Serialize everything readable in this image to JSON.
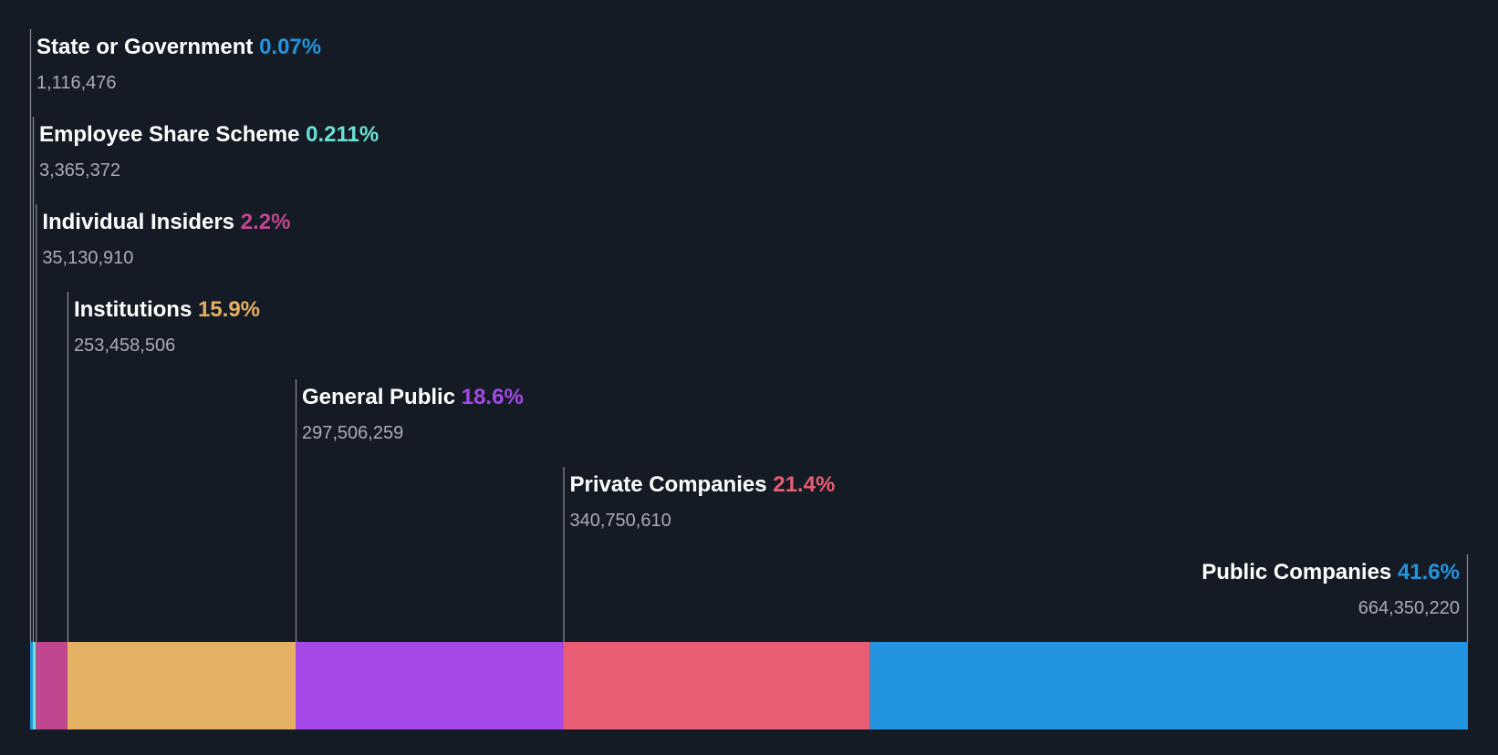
{
  "chart_data": {
    "type": "bar",
    "title": "",
    "orientation": "horizontal-stacked",
    "unit": "shares",
    "categories": [
      "State or Government",
      "Employee Share Scheme",
      "Individual Insiders",
      "Institutions",
      "General Public",
      "Private Companies",
      "Public Companies"
    ],
    "segments": [
      {
        "name": "State or Government",
        "percent_label": "0.07%",
        "percent": 0.07,
        "shares_label": "1,116,476",
        "shares": 1116476,
        "color": "#2394df"
      },
      {
        "name": "Employee Share Scheme",
        "percent_label": "0.211%",
        "percent": 0.211,
        "shares_label": "3,365,372",
        "shares": 3365372,
        "color": "#6ce2d6"
      },
      {
        "name": "Individual Insiders",
        "percent_label": "2.2%",
        "percent": 2.2,
        "shares_label": "35,130,910",
        "shares": 35130910,
        "color": "#c0478f"
      },
      {
        "name": "Institutions",
        "percent_label": "15.9%",
        "percent": 15.9,
        "shares_label": "253,458,506",
        "shares": 253458506,
        "color": "#e4b063"
      },
      {
        "name": "General Public",
        "percent_label": "18.6%",
        "percent": 18.6,
        "shares_label": "297,506,259",
        "shares": 297506259,
        "color": "#a548e8"
      },
      {
        "name": "Private Companies",
        "percent_label": "21.4%",
        "percent": 21.4,
        "shares_label": "340,750,610",
        "shares": 340750610,
        "color": "#e85c74"
      },
      {
        "name": "Public Companies",
        "percent_label": "41.6%",
        "percent": 41.6,
        "shares_label": "664,350,220",
        "shares": 664350220,
        "color": "#2394df"
      }
    ],
    "legend": "none",
    "grid": false
  },
  "theme": {
    "background": "#151b24",
    "name_color": "#ffffff",
    "count_color": "#a9adb3",
    "leader_color": "#8a8f96"
  }
}
